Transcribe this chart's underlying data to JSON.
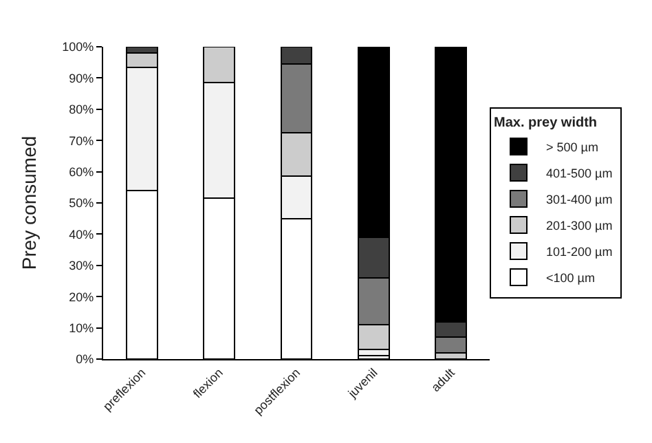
{
  "chart_data": {
    "type": "bar",
    "stacked": true,
    "ylabel": "Prey consumed",
    "legend_title": "Max. prey width",
    "legend": "right",
    "categories": [
      "preflexion",
      "flexion",
      "postflexion",
      "juvenil",
      "adult"
    ],
    "series": [
      {
        "name": "<100 µm",
        "color": "#ffffff",
        "values": [
          54,
          51.5,
          45,
          1,
          0
        ]
      },
      {
        "name": "101-200 µm",
        "color": "#f2f2f2",
        "values": [
          39.5,
          37,
          13.5,
          2,
          0
        ]
      },
      {
        "name": "201-300 µm",
        "color": "#cccccc",
        "values": [
          4.5,
          11.5,
          14,
          8,
          2
        ]
      },
      {
        "name": "301-400 µm",
        "color": "#7a7a7a",
        "values": [
          0,
          0,
          22,
          15,
          5
        ]
      },
      {
        "name": "401-500 µm",
        "color": "#404040",
        "values": [
          2,
          0,
          5.5,
          13,
          5
        ]
      },
      {
        "name": "> 500 µm",
        "color": "#000000",
        "values": [
          0,
          0,
          0,
          61,
          88
        ]
      }
    ],
    "ylim": [
      0,
      100
    ],
    "yticks": [
      {
        "value": 0,
        "label": "0%"
      },
      {
        "value": 10,
        "label": "10%"
      },
      {
        "value": 20,
        "label": "20%"
      },
      {
        "value": 30,
        "label": "30%"
      },
      {
        "value": 40,
        "label": "40%"
      },
      {
        "value": 50,
        "label": "50%"
      },
      {
        "value": 60,
        "label": "60%"
      },
      {
        "value": 70,
        "label": "70%"
      },
      {
        "value": 80,
        "label": "80%"
      },
      {
        "value": 90,
        "label": "90%"
      },
      {
        "value": 100,
        "label": "100%"
      }
    ]
  }
}
